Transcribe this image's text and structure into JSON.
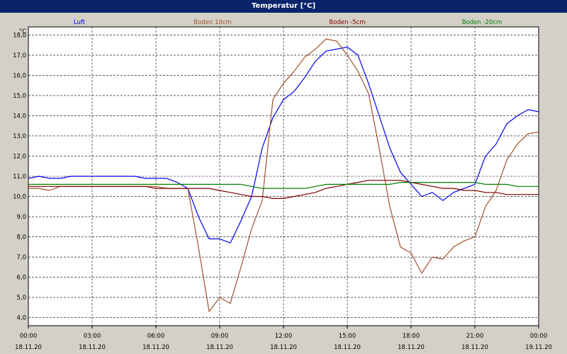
{
  "title": "Temperatur [°C]",
  "chart_data": {
    "type": "line",
    "title": "Temperatur [°C]",
    "ylabel": "°C",
    "xlabel": "",
    "ylim": [
      3.6,
      18.4
    ],
    "y_ticks": [
      "4,0",
      "5,0",
      "6,0",
      "7,0",
      "8,0",
      "9,0",
      "10,0",
      "11,0",
      "12,0",
      "13,0",
      "14,0",
      "15,0",
      "16,0",
      "17,0",
      "18,0"
    ],
    "x_ticks": [
      {
        "time": "00:00",
        "date": "18.11.20"
      },
      {
        "time": "03:00",
        "date": "18.11.20"
      },
      {
        "time": "06:00",
        "date": "18.11.20"
      },
      {
        "time": "09:00",
        "date": "18.11.20"
      },
      {
        "time": "12:00",
        "date": "18.11.20"
      },
      {
        "time": "15:00",
        "date": "18.11.20"
      },
      {
        "time": "18:00",
        "date": "18.11.20"
      },
      {
        "time": "21:00",
        "date": "18.11.20"
      },
      {
        "time": "00:00",
        "date": "19.11.20"
      }
    ],
    "grid": true,
    "x_hours": [
      0,
      0.5,
      1,
      1.5,
      2,
      2.5,
      3,
      3.5,
      4,
      4.5,
      5,
      5.5,
      6,
      6.5,
      7,
      7.5,
      8,
      8.5,
      9,
      9.5,
      10,
      10.5,
      11,
      11.5,
      12,
      12.5,
      13,
      13.5,
      14,
      14.5,
      15,
      15.5,
      16,
      16.5,
      17,
      17.5,
      18,
      18.5,
      19,
      19.5,
      20,
      20.5,
      21,
      21.5,
      22,
      22.5,
      23,
      23.5,
      24
    ],
    "series": [
      {
        "name": "Luft",
        "color": "#0000ee",
        "values": [
          10.9,
          11.0,
          10.9,
          10.9,
          11.0,
          11.0,
          11.0,
          11.0,
          11.0,
          11.0,
          11.0,
          10.9,
          10.9,
          10.9,
          10.7,
          10.4,
          9.0,
          7.9,
          7.9,
          7.7,
          8.8,
          10.0,
          12.4,
          13.9,
          14.8,
          15.2,
          15.9,
          16.7,
          17.2,
          17.3,
          17.4,
          17.0,
          15.6,
          14.0,
          12.4,
          11.2,
          10.6,
          10.0,
          10.2,
          9.8,
          10.2,
          10.4,
          10.6,
          12.0,
          12.6,
          13.6,
          14.0,
          14.3,
          14.2
        ]
      },
      {
        "name": "Boden 10cm",
        "color": "#a0522d",
        "values": [
          10.4,
          10.4,
          10.3,
          10.5,
          10.5,
          10.5,
          10.5,
          10.5,
          10.5,
          10.5,
          10.5,
          10.5,
          10.5,
          10.4,
          10.4,
          10.4,
          7.5,
          4.3,
          5.0,
          4.7,
          6.5,
          8.4,
          9.8,
          14.8,
          15.6,
          16.2,
          16.9,
          17.3,
          17.8,
          17.7,
          17.0,
          16.2,
          15.1,
          12.4,
          9.5,
          7.5,
          7.2,
          6.2,
          7.0,
          6.9,
          7.5,
          7.8,
          8.0,
          9.5,
          10.3,
          11.8,
          12.6,
          13.1,
          13.2
        ]
      },
      {
        "name": "Boden -5cm",
        "color": "#800000",
        "values": [
          10.5,
          10.5,
          10.5,
          10.5,
          10.5,
          10.5,
          10.5,
          10.5,
          10.5,
          10.5,
          10.5,
          10.5,
          10.4,
          10.4,
          10.4,
          10.4,
          10.4,
          10.4,
          10.3,
          10.2,
          10.1,
          10.0,
          10.0,
          9.9,
          9.9,
          10.0,
          10.1,
          10.2,
          10.4,
          10.5,
          10.6,
          10.7,
          10.8,
          10.8,
          10.8,
          10.8,
          10.7,
          10.6,
          10.5,
          10.4,
          10.4,
          10.3,
          10.3,
          10.2,
          10.2,
          10.1,
          10.1,
          10.1,
          10.1
        ]
      },
      {
        "name": "Boden -20cm",
        "color": "#008000",
        "values": [
          10.6,
          10.6,
          10.6,
          10.6,
          10.6,
          10.6,
          10.6,
          10.6,
          10.6,
          10.6,
          10.6,
          10.6,
          10.6,
          10.6,
          10.6,
          10.6,
          10.6,
          10.6,
          10.6,
          10.6,
          10.6,
          10.5,
          10.4,
          10.4,
          10.4,
          10.4,
          10.4,
          10.5,
          10.6,
          10.6,
          10.6,
          10.6,
          10.6,
          10.6,
          10.6,
          10.7,
          10.7,
          10.7,
          10.7,
          10.7,
          10.7,
          10.7,
          10.7,
          10.6,
          10.6,
          10.6,
          10.5,
          10.5,
          10.5
        ]
      }
    ]
  }
}
